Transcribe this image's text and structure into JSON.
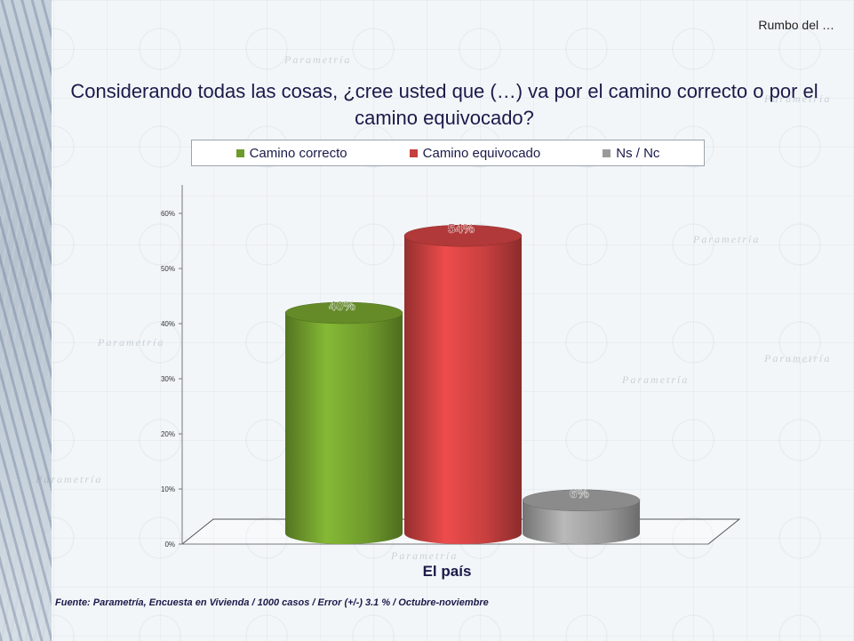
{
  "header": {
    "corner_label": "Rumbo del …"
  },
  "question": "Considerando todas las cosas, ¿cree usted que (…) va por el camino correcto o por el camino equivocado?",
  "footer": {
    "source": "Fuente: Parametría, Encuesta en Vivienda / 1000 casos / Error (+/-) 3.1 % / Octubre-noviembre"
  },
  "watermark_text": "Parametría",
  "chart_data": {
    "type": "bar",
    "xlabel": "El país",
    "ylim": [
      0,
      60
    ],
    "y_ticks": [
      "0%",
      "10%",
      "20%",
      "30%",
      "40%",
      "50%",
      "60%"
    ],
    "legend_position": "top",
    "series": [
      {
        "name": "Camino correcto",
        "value": 40,
        "label": "40%",
        "color": "#6f9a2c"
      },
      {
        "name": "Camino equivocado",
        "value": 54,
        "label": "54%",
        "color": "#c63f3f"
      },
      {
        "name": "Ns / Nc",
        "value": 6,
        "label": "6%",
        "color": "#9a9a9a"
      }
    ]
  }
}
